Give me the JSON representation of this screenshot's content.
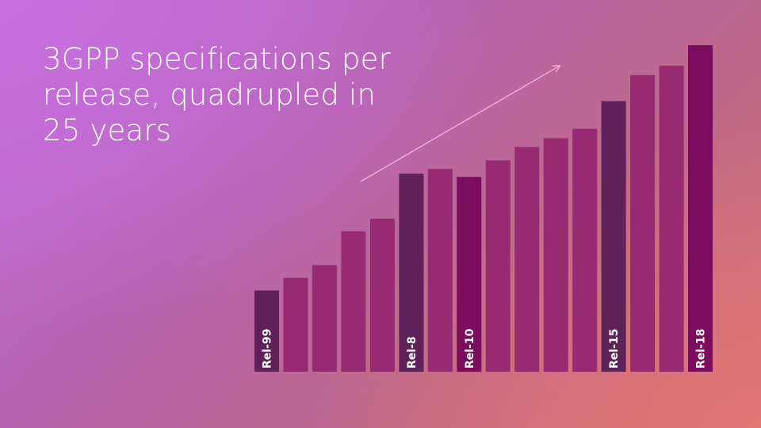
{
  "slide": {
    "title": "3GPP specifications per release, quadrupled in 25 years"
  },
  "colors": {
    "bar_default": "#962b72",
    "bar_dark": "#5e2158",
    "bar_deep": "#7a0d5e",
    "arrow": "#f4b8dd"
  },
  "chart_data": {
    "type": "bar",
    "title": "3GPP specifications per release, quadrupled in 25 years",
    "xlabel": "",
    "ylabel": "",
    "grid": false,
    "legend": "none",
    "ylim": [
      0,
      416
    ],
    "categories": [
      "Rel-99",
      "",
      "",
      "",
      "",
      "Rel-8",
      "",
      "Rel-10",
      "",
      "",
      "",
      "",
      "Rel-15",
      "",
      "",
      "Rel-18"
    ],
    "values": [
      103,
      119,
      135,
      178,
      194,
      251,
      257,
      247,
      268,
      285,
      296,
      308,
      343,
      376,
      388,
      414
    ],
    "styles": [
      "dark",
      "default",
      "default",
      "default",
      "default",
      "dark",
      "default",
      "deep",
      "default",
      "default",
      "default",
      "default",
      "dark",
      "default",
      "default",
      "deep"
    ],
    "annotations": [
      {
        "type": "trend-arrow"
      }
    ]
  }
}
